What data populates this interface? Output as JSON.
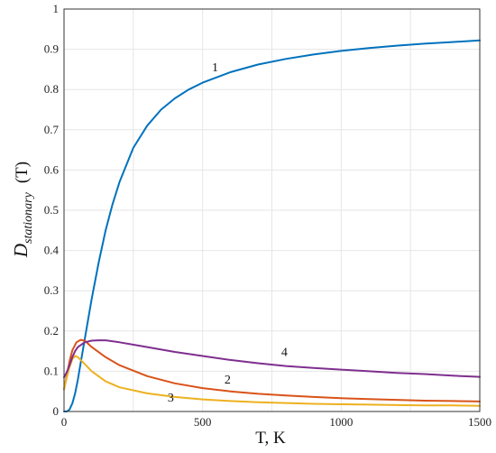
{
  "chart_data": {
    "type": "line",
    "xlabel": "T, K",
    "ylabel_main": "D",
    "ylabel_sub": "stationary",
    "ylabel_suffix": "(T)",
    "xlim": [
      0,
      1500
    ],
    "ylim": [
      0,
      1
    ],
    "xticks": [
      0,
      500,
      1000,
      1500
    ],
    "yticks": [
      0,
      0.1,
      0.2,
      0.3,
      0.4,
      0.5,
      0.6,
      0.7,
      0.8,
      0.9,
      1
    ],
    "ytick_labels": [
      "0",
      "0.1",
      "0.2",
      "0.3",
      "0.4",
      "0.5",
      "0.6",
      "0.7",
      "0.8",
      "0.9",
      "1"
    ],
    "xtick_labels": [
      "0",
      "500",
      "1000",
      "1500"
    ],
    "grid": true,
    "series": [
      {
        "name": "1",
        "color": "#0072BD",
        "label_at": [
          545,
          0.845
        ],
        "points": [
          [
            0,
            0
          ],
          [
            10,
            0
          ],
          [
            20,
            0.005
          ],
          [
            30,
            0.02
          ],
          [
            40,
            0.045
          ],
          [
            50,
            0.08
          ],
          [
            60,
            0.12
          ],
          [
            75,
            0.18
          ],
          [
            100,
            0.28
          ],
          [
            125,
            0.37
          ],
          [
            150,
            0.45
          ],
          [
            175,
            0.515
          ],
          [
            200,
            0.57
          ],
          [
            250,
            0.655
          ],
          [
            300,
            0.71
          ],
          [
            350,
            0.75
          ],
          [
            400,
            0.778
          ],
          [
            450,
            0.8
          ],
          [
            500,
            0.817
          ],
          [
            600,
            0.843
          ],
          [
            700,
            0.862
          ],
          [
            800,
            0.876
          ],
          [
            900,
            0.887
          ],
          [
            1000,
            0.896
          ],
          [
            1100,
            0.903
          ],
          [
            1200,
            0.909
          ],
          [
            1300,
            0.914
          ],
          [
            1400,
            0.918
          ],
          [
            1500,
            0.922
          ]
        ]
      },
      {
        "name": "2",
        "color": "#D95319",
        "label_at": [
          590,
          0.07
        ],
        "points": [
          [
            0,
            0.055
          ],
          [
            10,
            0.09
          ],
          [
            20,
            0.125
          ],
          [
            30,
            0.152
          ],
          [
            45,
            0.172
          ],
          [
            60,
            0.178
          ],
          [
            75,
            0.176
          ],
          [
            100,
            0.16
          ],
          [
            150,
            0.135
          ],
          [
            200,
            0.115
          ],
          [
            300,
            0.088
          ],
          [
            400,
            0.07
          ],
          [
            500,
            0.058
          ],
          [
            600,
            0.05
          ],
          [
            700,
            0.044
          ],
          [
            800,
            0.04
          ],
          [
            900,
            0.036
          ],
          [
            1000,
            0.033
          ],
          [
            1100,
            0.031
          ],
          [
            1200,
            0.029
          ],
          [
            1300,
            0.027
          ],
          [
            1400,
            0.026
          ],
          [
            1500,
            0.025
          ]
        ]
      },
      {
        "name": "3",
        "color": "#EDB120",
        "label_at": [
          385,
          0.025
        ],
        "points": [
          [
            0,
            0.055
          ],
          [
            10,
            0.085
          ],
          [
            20,
            0.11
          ],
          [
            30,
            0.13
          ],
          [
            40,
            0.138
          ],
          [
            50,
            0.135
          ],
          [
            75,
            0.118
          ],
          [
            100,
            0.1
          ],
          [
            150,
            0.075
          ],
          [
            200,
            0.06
          ],
          [
            300,
            0.045
          ],
          [
            400,
            0.036
          ],
          [
            500,
            0.03
          ],
          [
            600,
            0.026
          ],
          [
            700,
            0.023
          ],
          [
            800,
            0.021
          ],
          [
            900,
            0.019
          ],
          [
            1000,
            0.018
          ],
          [
            1100,
            0.017
          ],
          [
            1200,
            0.016
          ],
          [
            1300,
            0.015
          ],
          [
            1400,
            0.015
          ],
          [
            1500,
            0.014
          ]
        ]
      },
      {
        "name": "4",
        "color": "#7E2F8E",
        "label_at": [
          795,
          0.138
        ],
        "points": [
          [
            0,
            0.085
          ],
          [
            10,
            0.098
          ],
          [
            20,
            0.115
          ],
          [
            30,
            0.135
          ],
          [
            40,
            0.15
          ],
          [
            50,
            0.16
          ],
          [
            75,
            0.172
          ],
          [
            100,
            0.176
          ],
          [
            125,
            0.177
          ],
          [
            150,
            0.177
          ],
          [
            200,
            0.172
          ],
          [
            300,
            0.16
          ],
          [
            400,
            0.148
          ],
          [
            500,
            0.138
          ],
          [
            600,
            0.128
          ],
          [
            700,
            0.12
          ],
          [
            800,
            0.113
          ],
          [
            900,
            0.108
          ],
          [
            1000,
            0.104
          ],
          [
            1100,
            0.1
          ],
          [
            1200,
            0.096
          ],
          [
            1300,
            0.093
          ],
          [
            1400,
            0.089
          ],
          [
            1500,
            0.086
          ]
        ]
      }
    ]
  }
}
